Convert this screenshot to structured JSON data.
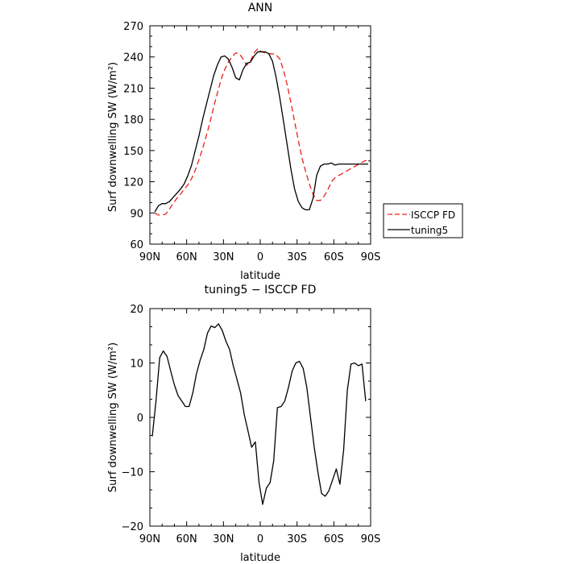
{
  "colors": {
    "isccp": "#e8231e",
    "tuning5": "#000000",
    "axis": "#000000"
  },
  "chart_data": [
    {
      "type": "line",
      "title": "ANN",
      "xlabel": "latitude",
      "ylabel": "Surf downwelling SW (W/m²)",
      "ylim": [
        60,
        270
      ],
      "yticks": [
        60,
        90,
        120,
        150,
        180,
        210,
        240,
        270
      ],
      "ytick_labels": [
        "60",
        "90",
        "120",
        "150",
        "180",
        "210",
        "240",
        "270"
      ],
      "xlim": [
        90,
        -90
      ],
      "xticks": [
        90,
        60,
        30,
        0,
        -30,
        -60,
        -90
      ],
      "xtick_labels": [
        "90N",
        "60N",
        "30N",
        "0",
        "30S",
        "60S",
        "90S"
      ],
      "legend": {
        "placement": "right-bottom"
      },
      "series": [
        {
          "name": "ISCCP FD",
          "style": "dashed",
          "color": "#e8231e",
          "x": [
            86,
            83,
            80,
            77,
            74,
            71,
            68,
            65,
            62,
            59,
            56,
            53,
            50,
            47,
            44,
            41,
            38,
            35,
            32,
            29,
            26,
            23,
            20,
            17,
            14,
            11,
            8,
            5,
            2,
            -1,
            -4,
            -7,
            -10,
            -13,
            -16,
            -19,
            -22,
            -25,
            -28,
            -31,
            -34,
            -37,
            -40,
            -43,
            -46,
            -49,
            -52,
            -55,
            -58,
            -61,
            -64,
            -67,
            -70,
            -73,
            -76,
            -79,
            -82,
            -85,
            -88
          ],
          "y": [
            90,
            88,
            88,
            89,
            94,
            99,
            104,
            108,
            113,
            117,
            123,
            131,
            141,
            152,
            164,
            177,
            192,
            205,
            218,
            228,
            235,
            240,
            244,
            243,
            238,
            232,
            236,
            244,
            248,
            245,
            244,
            243,
            243,
            242,
            238,
            227,
            213,
            196,
            178,
            160,
            143,
            130,
            118,
            108,
            102,
            102,
            106,
            112,
            120,
            124,
            126,
            128,
            130,
            132,
            134,
            136,
            138,
            140,
            141
          ]
        },
        {
          "name": "tuning5",
          "style": "solid",
          "color": "#000000",
          "x": [
            86,
            83,
            80,
            77,
            74,
            71,
            68,
            65,
            62,
            59,
            56,
            53,
            50,
            47,
            44,
            41,
            38,
            35,
            32,
            29,
            26,
            23,
            20,
            17,
            14,
            11,
            8,
            5,
            2,
            -1,
            -4,
            -7,
            -10,
            -13,
            -16,
            -19,
            -22,
            -25,
            -28,
            -31,
            -34,
            -37,
            -40,
            -43,
            -46,
            -49,
            -52,
            -55,
            -58,
            -61,
            -64,
            -67,
            -70,
            -73,
            -76,
            -79,
            -82,
            -85,
            -88
          ],
          "y": [
            91,
            97,
            99,
            99,
            101,
            105,
            109,
            113,
            118,
            126,
            136,
            150,
            164,
            180,
            194,
            208,
            222,
            232,
            240,
            241,
            238,
            230,
            220,
            218,
            228,
            234,
            235,
            241,
            245,
            245,
            245,
            243,
            236,
            220,
            200,
            178,
            155,
            132,
            113,
            101,
            95,
            93,
            93,
            104,
            126,
            135,
            137,
            137,
            138,
            136,
            137,
            137,
            137,
            137,
            137,
            137,
            137,
            137,
            137
          ]
        }
      ]
    },
    {
      "type": "line",
      "title": "tuning5 − ISCCP FD",
      "xlabel": "latitude",
      "ylabel": "Surf downwelling SW (W/m²)",
      "ylim": [
        -20,
        20
      ],
      "yticks": [
        -20,
        -10,
        0,
        10,
        20
      ],
      "ytick_labels": [
        "−20",
        "−10",
        "0",
        "10",
        "20"
      ],
      "xlim": [
        90,
        -90
      ],
      "xticks": [
        90,
        60,
        30,
        0,
        -30,
        -60,
        -90
      ],
      "xtick_labels": [
        "90N",
        "60N",
        "30N",
        "0",
        "30S",
        "60S",
        "90S"
      ],
      "series": [
        {
          "style": "solid",
          "color": "#000000",
          "x": [
            88,
            85,
            82,
            79,
            76,
            73,
            70,
            67,
            64,
            61,
            58,
            55,
            52,
            49,
            46,
            43,
            40,
            37,
            34,
            31,
            28,
            25,
            22,
            19,
            16,
            13,
            10,
            7,
            4,
            1,
            -2,
            -5,
            -8,
            -11,
            -14,
            -17,
            -20,
            -23,
            -26,
            -29,
            -32,
            -35,
            -38,
            -41,
            -44,
            -47,
            -50,
            -53,
            -56,
            -59,
            -62,
            -65,
            -68,
            -71,
            -74,
            -77,
            -80,
            -83,
            -86
          ],
          "y": [
            -3.5,
            3,
            11,
            12.2,
            11.2,
            8.5,
            6,
            4,
            3,
            2,
            2,
            4.5,
            8,
            10.5,
            12.5,
            15.5,
            16.8,
            16.5,
            17.2,
            16,
            14,
            12.5,
            9.5,
            7,
            4.5,
            0.5,
            -2.5,
            -5.5,
            -4.5,
            -12,
            -16,
            -13,
            -12,
            -8,
            1.8,
            2,
            3,
            5.5,
            8.5,
            10,
            10.3,
            9,
            5.5,
            0,
            -5.5,
            -10,
            -14,
            -14.5,
            -13.5,
            -11.5,
            -9.5,
            -12.3,
            -6,
            5,
            9.8,
            10,
            9.5,
            9.8,
            3
          ]
        }
      ]
    }
  ]
}
